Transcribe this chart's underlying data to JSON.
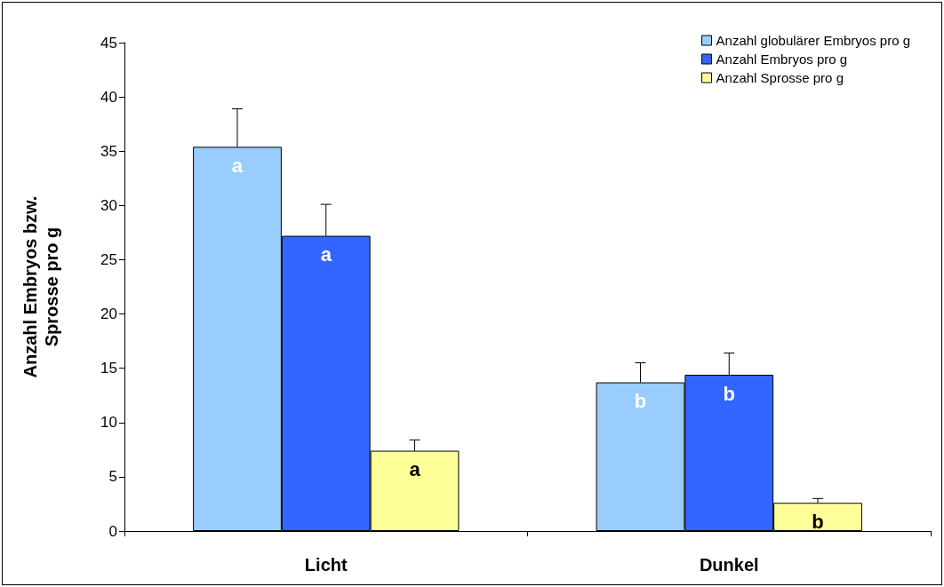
{
  "chart_data": {
    "type": "bar",
    "ylabel": "Anzahl Embryos bzw.\nSprosse pro g",
    "categories": [
      "Licht",
      "Dunkel"
    ],
    "series": [
      {
        "name": "Anzahl globulärer Embryos pro g",
        "color": "#99ccff",
        "values": [
          35.4,
          13.7
        ],
        "errors": [
          [
            35.4,
            38.9
          ],
          [
            13.7,
            15.5
          ]
        ],
        "value_labels": [
          "a",
          "b"
        ]
      },
      {
        "name": "Anzahl Embryos pro g",
        "color": "#3366ff",
        "values": [
          27.2,
          14.4
        ],
        "errors": [
          [
            27.2,
            30.1
          ],
          [
            14.4,
            16.4
          ]
        ],
        "value_labels": [
          "a",
          "b"
        ]
      },
      {
        "name": "Anzahl Sprosse pro g",
        "color": "#ffff99",
        "values": [
          7.4,
          2.6
        ],
        "errors": [
          [
            7.4,
            8.4
          ],
          [
            2.6,
            3.0
          ]
        ],
        "value_labels": [
          "a",
          "b"
        ]
      }
    ],
    "ylim": [
      0,
      45
    ],
    "yticks": [
      0,
      5,
      10,
      15,
      20,
      25,
      30,
      35,
      40,
      45
    ],
    "grid": false,
    "legend": "top right"
  }
}
